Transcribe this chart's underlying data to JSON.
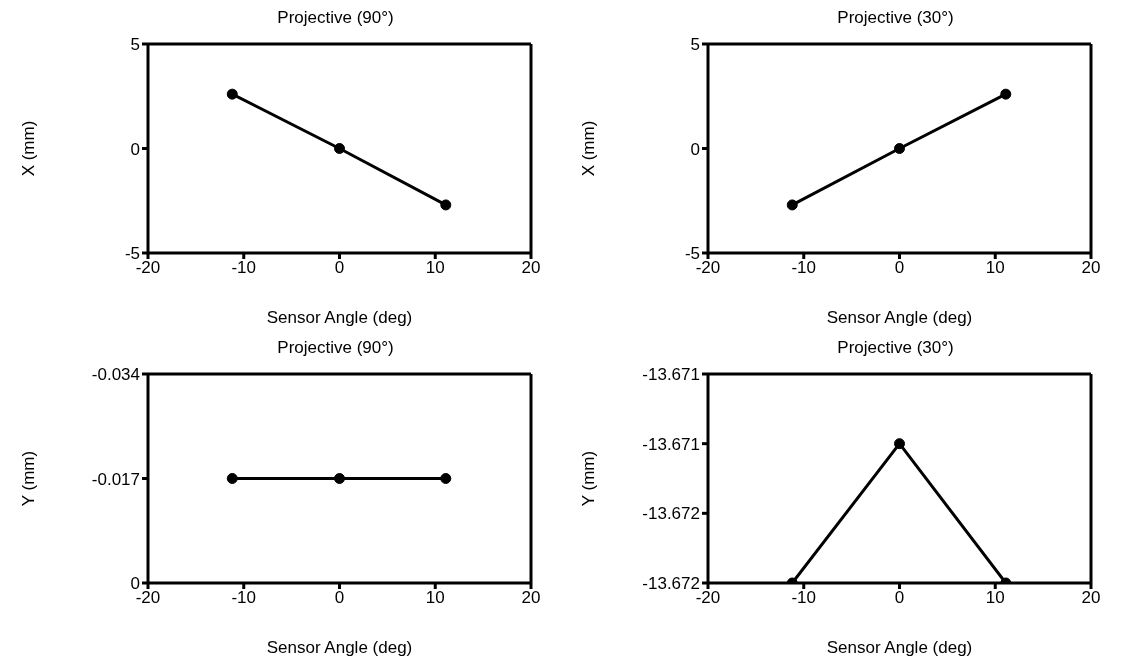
{
  "chart_data": [
    {
      "type": "line",
      "title": "Projective (90°)",
      "xlabel": "Sensor Angle (deg)",
      "ylabel": "X (mm)",
      "x": [
        -11.2,
        0,
        11.1
      ],
      "series": [
        {
          "color": "#000000",
          "values": [
            2.6,
            0,
            -2.7
          ]
        }
      ],
      "xlim": [
        -20,
        20
      ],
      "xticks": [
        -20,
        -10,
        0,
        10,
        20
      ],
      "ylim": [
        -5,
        5
      ],
      "yticks": [
        -5,
        0,
        5
      ],
      "marker": "circle",
      "line_style": "solid"
    },
    {
      "type": "line",
      "title": "Projective (30°)",
      "xlabel": "Sensor Angle (deg)",
      "ylabel": "X (mm)",
      "x": [
        -11.2,
        0,
        11.1
      ],
      "series": [
        {
          "color": "#000000",
          "values": [
            -2.7,
            0,
            2.6
          ]
        }
      ],
      "xlim": [
        -20,
        20
      ],
      "xticks": [
        -20,
        -10,
        0,
        10,
        20
      ],
      "ylim": [
        -5,
        5
      ],
      "yticks": [
        -5,
        0,
        5
      ],
      "marker": "circle",
      "line_style": "solid"
    },
    {
      "type": "line",
      "title": "Projective (90°)",
      "xlabel": "Sensor Angle (deg)",
      "ylabel": "Y (mm)",
      "x": [
        -11.2,
        0,
        11.1
      ],
      "series": [
        {
          "color": "#000000",
          "values": [
            -0.017,
            -0.017,
            -0.017
          ]
        }
      ],
      "xlim": [
        -20,
        20
      ],
      "xticks": [
        -20,
        -10,
        0,
        10,
        20
      ],
      "ylim": [
        0,
        -0.034
      ],
      "yticks": [
        0,
        -0.017,
        -0.034
      ],
      "marker": "circle",
      "line_style": "solid"
    },
    {
      "type": "line",
      "title": "Projective (30°)",
      "xlabel": "Sensor Angle (deg)",
      "ylabel": "Y (mm)",
      "x": [
        -11.2,
        0,
        11.1
      ],
      "series": [
        {
          "color": "#000000",
          "values": [
            -13.672,
            -13.6714,
            -13.672
          ]
        }
      ],
      "xlim": [
        -20,
        20
      ],
      "xticks": [
        -20,
        -10,
        0,
        10,
        20
      ],
      "ylim": [
        -13.672,
        -13.6711
      ],
      "yticks": [
        {
          "value": -13.672,
          "label": "-13.672"
        },
        {
          "value": -13.6717,
          "label": "-13.672"
        },
        {
          "value": -13.6714,
          "label": "-13.671"
        },
        {
          "value": -13.6711,
          "label": "-13.671"
        }
      ],
      "marker": "circle",
      "line_style": "solid"
    }
  ]
}
